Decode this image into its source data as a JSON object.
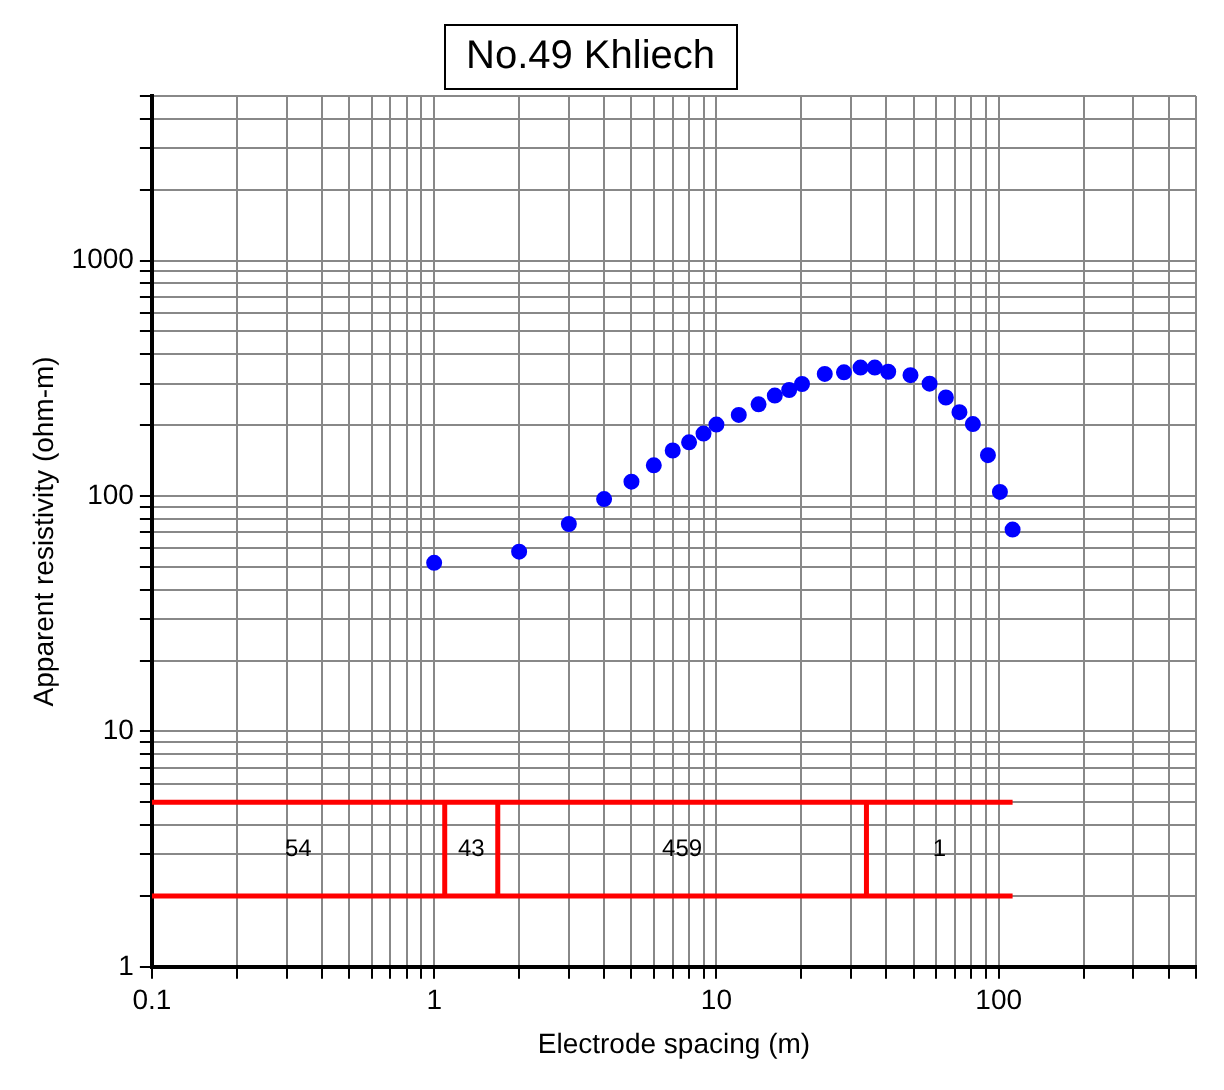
{
  "chart_data": {
    "type": "scatter",
    "title": "No.49 Khliech",
    "xlabel": "Electrode spacing (m)",
    "ylabel": "Apparent resistivity (ohm-m)",
    "log": "xy",
    "grid": true,
    "legend": false,
    "xlim": [
      0.1,
      500
    ],
    "ylim": [
      1,
      5000
    ],
    "xticks": [
      0.1,
      {
        "value": 0.2,
        "label": null
      },
      {
        "value": 0.3,
        "label": null
      },
      {
        "value": 0.4,
        "label": null
      },
      {
        "value": 0.5,
        "label": null
      },
      {
        "value": 0.6,
        "label": null
      },
      {
        "value": 0.7,
        "label": null
      },
      {
        "value": 0.8,
        "label": null
      },
      {
        "value": 0.9,
        "label": null
      },
      1,
      {
        "value": 2,
        "label": null
      },
      {
        "value": 3,
        "label": null
      },
      {
        "value": 4,
        "label": null
      },
      {
        "value": 5,
        "label": null
      },
      {
        "value": 6,
        "label": null
      },
      {
        "value": 7,
        "label": null
      },
      {
        "value": 8,
        "label": null
      },
      {
        "value": 9,
        "label": null
      },
      10,
      {
        "value": 20,
        "label": null
      },
      {
        "value": 30,
        "label": null
      },
      {
        "value": 40,
        "label": null
      },
      {
        "value": 50,
        "label": null
      },
      {
        "value": 60,
        "label": null
      },
      {
        "value": 70,
        "label": null
      },
      {
        "value": 80,
        "label": null
      },
      {
        "value": 90,
        "label": null
      },
      100,
      {
        "value": 200,
        "label": null
      },
      {
        "value": 300,
        "label": null
      },
      {
        "value": 400,
        "label": null
      },
      {
        "value": 500,
        "label": null
      }
    ],
    "yticks": [
      1,
      {
        "value": 2,
        "label": null
      },
      {
        "value": 3,
        "label": null
      },
      {
        "value": 4,
        "label": null
      },
      {
        "value": 5,
        "label": null
      },
      {
        "value": 6,
        "label": null
      },
      {
        "value": 7,
        "label": null
      },
      {
        "value": 8,
        "label": null
      },
      {
        "value": 9,
        "label": null
      },
      10,
      {
        "value": 20,
        "label": null
      },
      {
        "value": 30,
        "label": null
      },
      {
        "value": 40,
        "label": null
      },
      {
        "value": 50,
        "label": null
      },
      {
        "value": 60,
        "label": null
      },
      {
        "value": 70,
        "label": null
      },
      {
        "value": 80,
        "label": null
      },
      {
        "value": 90,
        "label": null
      },
      100,
      {
        "value": 200,
        "label": null
      },
      {
        "value": 300,
        "label": null
      },
      {
        "value": 400,
        "label": null
      },
      {
        "value": 500,
        "label": null
      },
      {
        "value": 600,
        "label": null
      },
      {
        "value": 700,
        "label": null
      },
      {
        "value": 800,
        "label": null
      },
      {
        "value": 900,
        "label": null
      },
      1000,
      {
        "value": 2000,
        "label": null
      },
      {
        "value": 3000,
        "label": null
      },
      {
        "value": 4000,
        "label": null
      },
      {
        "value": 5000,
        "label": null
      }
    ],
    "series": [
      {
        "type": "scatter",
        "marker": "circle",
        "color": "#0000ff",
        "x": [
          1,
          2,
          3,
          4,
          5,
          6,
          7,
          8,
          9,
          10,
          12,
          14.1,
          16.1,
          18.1,
          20.1,
          24.2,
          28.3,
          32.4,
          36.4,
          40.6,
          48.7,
          56.9,
          65,
          72.6,
          81,
          91.6,
          101,
          112
        ],
        "values": [
          52,
          58,
          76,
          97,
          115,
          135,
          156,
          169,
          184,
          201,
          221,
          245,
          267,
          282,
          299,
          330,
          335,
          351,
          351,
          337,
          326,
          300,
          262,
          227,
          202,
          149,
          104,
          72
        ]
      },
      {
        "type": "line",
        "color": "#ff0000",
        "line_style": "solid",
        "x": [
          0.1,
          112
        ],
        "values": [
          5,
          5
        ]
      },
      {
        "type": "line",
        "color": "#ff0000",
        "line_style": "solid",
        "x": [
          0.1,
          112
        ],
        "values": [
          2,
          2
        ]
      },
      {
        "type": "line",
        "color": "#ff0000",
        "line_style": "solid",
        "x": [
          1.09,
          1.09
        ],
        "values": [
          2,
          5
        ]
      },
      {
        "type": "line",
        "color": "#ff0000",
        "line_style": "solid",
        "x": [
          1.68,
          1.68
        ],
        "values": [
          2,
          5
        ]
      },
      {
        "type": "line",
        "color": "#ff0000",
        "line_style": "solid",
        "x": [
          34,
          34
        ],
        "values": [
          2,
          5
        ]
      }
    ],
    "annotations": [
      "54",
      "43",
      "459",
      "1"
    ]
  }
}
